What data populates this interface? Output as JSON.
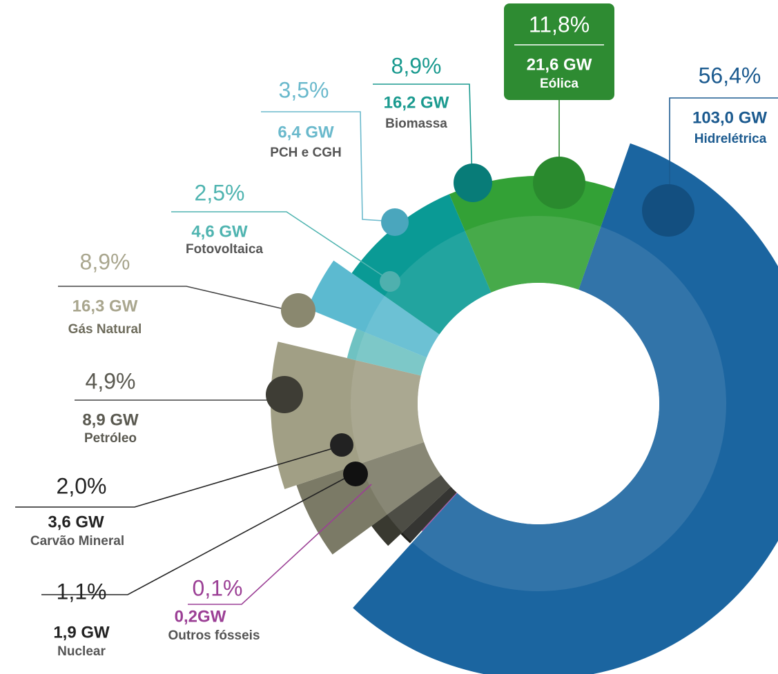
{
  "chart_data": {
    "type": "pie",
    "categories": [
      "Hidrelétrica",
      "Outros fósseis",
      "Nuclear",
      "Carvão Mineral",
      "Petróleo",
      "Gás Natural",
      "Fotovoltaica",
      "PCH e CGH",
      "Biomassa",
      "Eólica"
    ],
    "values": [
      56.4,
      0.1,
      1.1,
      2.0,
      4.9,
      8.9,
      2.5,
      3.5,
      8.9,
      11.8
    ],
    "value_labels": [
      "56,4%",
      "0,1%",
      "1,1%",
      "2,0%",
      "4,9%",
      "8,9%",
      "2,5%",
      "3,5%",
      "8,9%",
      "11,8%"
    ],
    "capacities": [
      103.0,
      0.2,
      1.9,
      3.6,
      8.9,
      16.3,
      4.6,
      6.4,
      16.2,
      21.6
    ],
    "capacity_labels": [
      "103,0 GW",
      "0,2GW",
      "1,9 GW",
      "3,6 GW",
      "8,9 GW",
      "16,3 GW",
      "4,6 GW",
      "6,4 GW",
      "16,2 GW",
      "21,6 GW"
    ],
    "colors": [
      "#1b65a0",
      "#a0409a",
      "#1f1f1b",
      "#393930",
      "#7b7a66",
      "#a19f85",
      "#6fc2c2",
      "#5cbad0",
      "#0a9a95",
      "#33a136"
    ]
  }
}
